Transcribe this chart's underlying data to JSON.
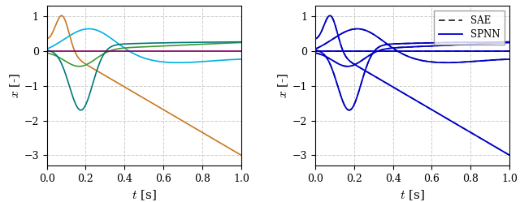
{
  "xlim": [
    0,
    1
  ],
  "ylim": [
    -3.3,
    1.3
  ],
  "xlabel": "$t$ [s]",
  "ylabel": "$x$ [-]",
  "grid_color": "#cccccc",
  "grid_style": "--",
  "xticks": [
    0,
    0.2,
    0.4,
    0.6,
    0.8,
    1.0
  ],
  "yticks": [
    -3,
    -2,
    -1,
    0,
    1
  ],
  "colors_left": [
    "#c87820",
    "#00b0e0",
    "#3a9a30",
    "#007878",
    "#800060"
  ],
  "spnn_color": "#0000cc",
  "sae_color": "#000000",
  "legend_labels": [
    "SAE",
    "SPNN"
  ],
  "tick_fontsize": 9,
  "label_fontsize": 11
}
